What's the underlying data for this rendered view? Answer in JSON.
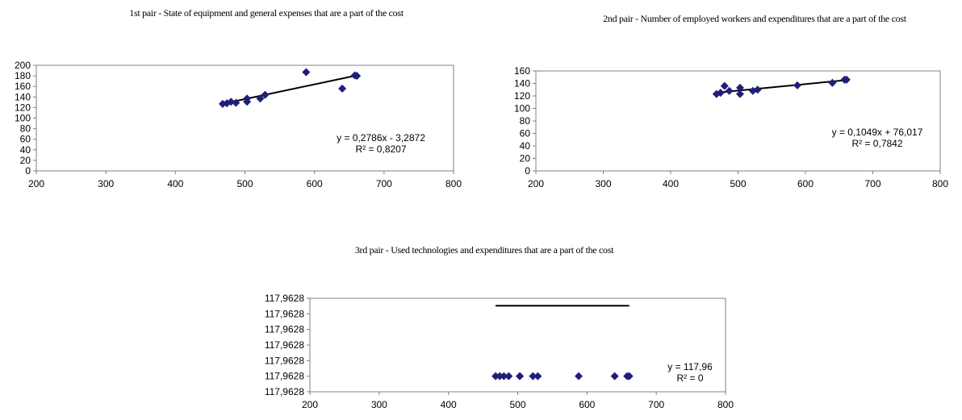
{
  "colors": {
    "marker": "#1F1F7A",
    "trend": "#000000",
    "axis": "#808080",
    "frame": "#808080"
  },
  "chart_data": [
    {
      "type": "scatter",
      "title": "1st pair - State of equipment and general expenses that are a part of the cost",
      "xlim": [
        200,
        800
      ],
      "ylim": [
        0,
        200
      ],
      "x_ticks": [
        "200",
        "300",
        "400",
        "500",
        "600",
        "700",
        "800"
      ],
      "y_ticks": [
        "0",
        "20",
        "40",
        "60",
        "80",
        "100",
        "120",
        "140",
        "160",
        "180",
        "200"
      ],
      "grid": false,
      "points": [
        {
          "x": 468,
          "y": 127
        },
        {
          "x": 474,
          "y": 128
        },
        {
          "x": 480,
          "y": 131
        },
        {
          "x": 487,
          "y": 129
        },
        {
          "x": 503,
          "y": 137
        },
        {
          "x": 503,
          "y": 131
        },
        {
          "x": 522,
          "y": 137
        },
        {
          "x": 529,
          "y": 144
        },
        {
          "x": 588,
          "y": 187
        },
        {
          "x": 640,
          "y": 156
        },
        {
          "x": 658,
          "y": 181
        },
        {
          "x": 661,
          "y": 180
        }
      ],
      "trendline": {
        "slope": 0.2786,
        "intercept": -3.2872,
        "x_range": [
          468,
          661
        ]
      },
      "equation": "y = 0,2786x - 3,2872",
      "r2": "R² = 0,8207"
    },
    {
      "type": "scatter",
      "title": "2nd pair - Number of employed workers and expenditures that are a part of the cost",
      "xlim": [
        200,
        800
      ],
      "ylim": [
        0,
        160
      ],
      "x_ticks": [
        "200",
        "300",
        "400",
        "500",
        "600",
        "700",
        "800"
      ],
      "y_ticks": [
        "0",
        "20",
        "40",
        "60",
        "80",
        "100",
        "120",
        "140",
        "160"
      ],
      "grid": false,
      "points": [
        {
          "x": 468,
          "y": 123
        },
        {
          "x": 474,
          "y": 125
        },
        {
          "x": 480,
          "y": 136
        },
        {
          "x": 487,
          "y": 128
        },
        {
          "x": 503,
          "y": 133
        },
        {
          "x": 503,
          "y": 123
        },
        {
          "x": 522,
          "y": 128
        },
        {
          "x": 529,
          "y": 130
        },
        {
          "x": 588,
          "y": 137
        },
        {
          "x": 640,
          "y": 141
        },
        {
          "x": 658,
          "y": 146
        },
        {
          "x": 661,
          "y": 146
        }
      ],
      "trendline": {
        "slope": 0.1049,
        "intercept": 76.017,
        "x_range": [
          468,
          661
        ]
      },
      "equation": "y = 0,1049x + 76,017",
      "r2": "R² = 0,7842"
    },
    {
      "type": "scatter",
      "title": "3rd pair - Used technologies  and expenditures that are a part of the cost",
      "xlim": [
        200,
        800
      ],
      "x_ticks": [
        "200",
        "300",
        "400",
        "500",
        "600",
        "700",
        "800"
      ],
      "y_ticks": [
        "117,9628",
        "117,9628",
        "117,9628",
        "117,9628",
        "117,9628",
        "117,9628",
        "117,9628"
      ],
      "grid": false,
      "points_x": [
        468,
        474,
        480,
        487,
        503,
        503,
        522,
        529,
        588,
        640,
        658,
        661
      ],
      "trendline": {
        "x_range": [
          468,
          661
        ]
      },
      "equation": "y = 117,96",
      "r2": "R² = 0"
    }
  ]
}
